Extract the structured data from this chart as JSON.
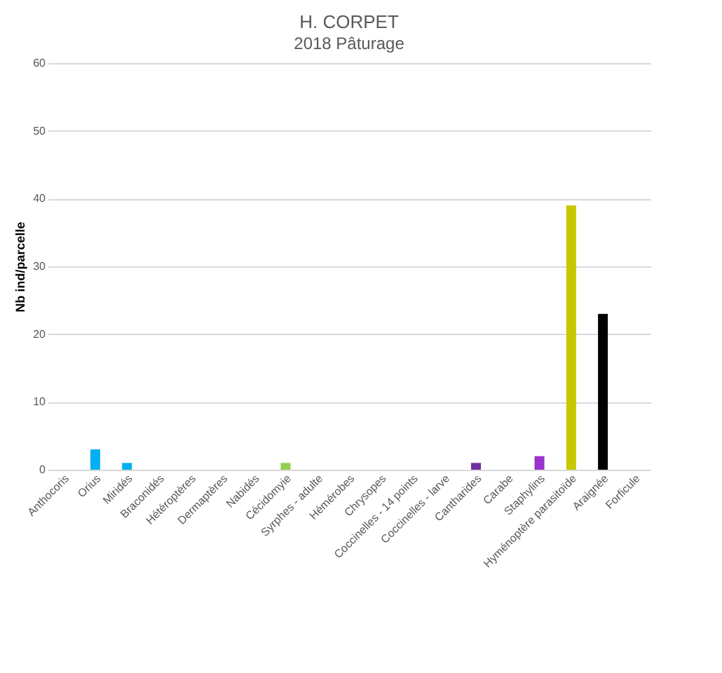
{
  "chart_data": {
    "type": "bar",
    "title": "H. CORPET",
    "subtitle": "2018 Pâturage",
    "ylabel": "Nb ind/parcelle",
    "categories": [
      "Anthocoris",
      "Orius",
      "Miridés",
      "Braconidés",
      "Hétéroptères",
      "Dermaptères",
      "Nabidés",
      "Cécidomyie",
      "Syrphes - adulte",
      "Hémérobes",
      "Chrysopes",
      "Coccinelles - 14 points",
      "Coccinelles - larve",
      "Cantharides",
      "Carabe",
      "Staphylins",
      "Hyménoptère parasitoïde",
      "Araignée",
      "Forficule"
    ],
    "values": [
      0,
      3,
      1,
      0,
      0,
      0,
      0,
      1,
      0,
      0,
      0,
      0,
      0,
      1,
      0,
      2,
      39,
      23,
      0
    ],
    "colors": [
      "#ff9999",
      "#00b0f0",
      "#00b0f0",
      "#ffc000",
      "#ffc000",
      "#ffc000",
      "#ffc000",
      "#92d050",
      "#92d050",
      "#92d050",
      "#92d050",
      "#ff0000",
      "#ff0000",
      "#7030a0",
      "#7030a0",
      "#9933cc",
      "#c8c800",
      "#000000",
      "#808080"
    ],
    "ylim": [
      0,
      60
    ],
    "yticks": [
      0,
      10,
      20,
      30,
      40,
      50,
      60
    ],
    "grid": "y"
  }
}
